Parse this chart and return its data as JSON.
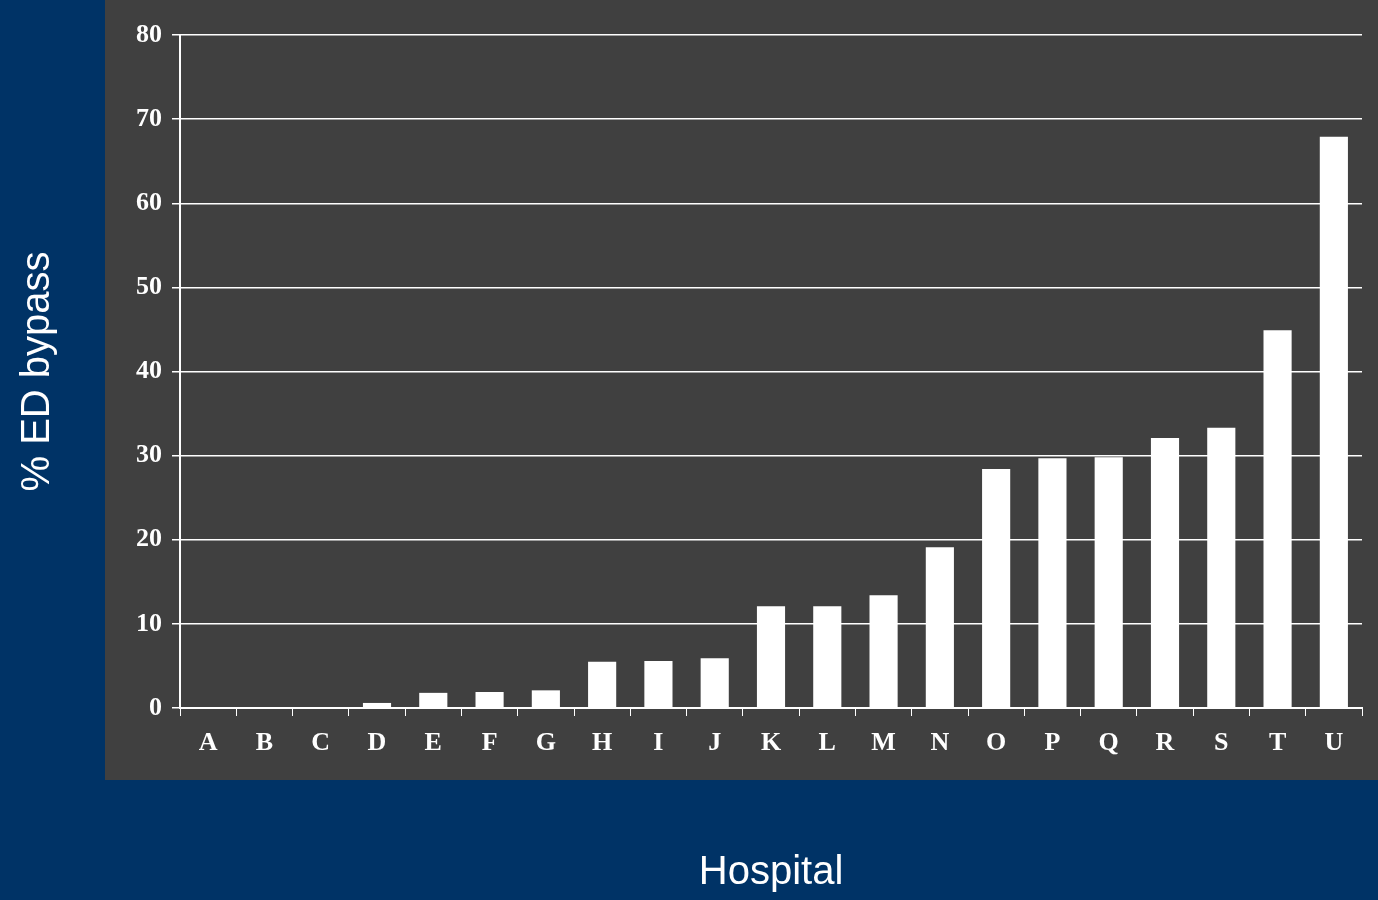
{
  "chart_data": {
    "type": "bar",
    "xlabel": "Hospital",
    "ylabel": "% ED bypass",
    "categories": [
      "A",
      "B",
      "C",
      "D",
      "E",
      "F",
      "G",
      "H",
      "I",
      "J",
      "K",
      "L",
      "M",
      "N",
      "O",
      "P",
      "Q",
      "R",
      "S",
      "T",
      "U"
    ],
    "values": [
      0,
      0,
      0,
      0.6,
      1.8,
      1.9,
      2.1,
      5.5,
      5.6,
      5.9,
      12.1,
      12.1,
      13.4,
      19.1,
      28.4,
      29.7,
      29.8,
      32.1,
      33.3,
      44.9,
      67.9
    ],
    "color": "#ffffff",
    "ylim": [
      0,
      80
    ],
    "yticks": [
      0,
      10,
      20,
      30,
      40,
      50,
      60,
      70,
      80
    ],
    "grid": "y",
    "legend": false
  }
}
